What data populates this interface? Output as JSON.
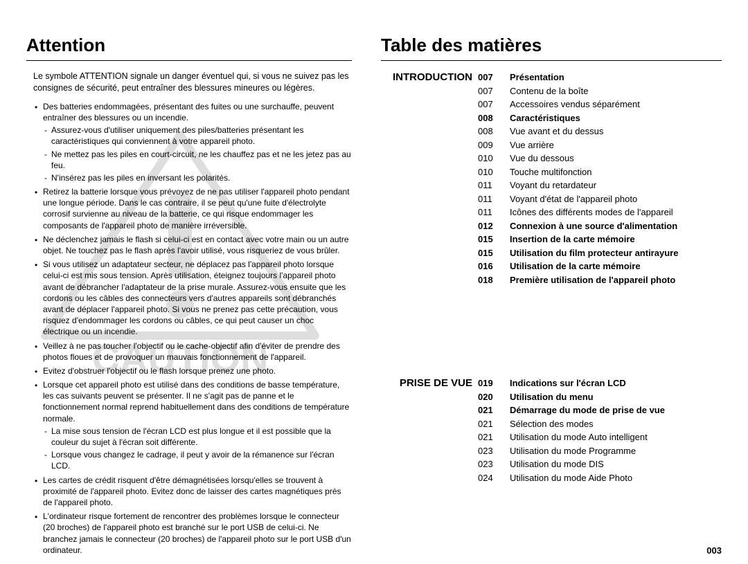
{
  "watermark": {
    "text": "CAUTION",
    "color": "#d9d9d9",
    "triangle_stroke": "#d9d9d9"
  },
  "left": {
    "heading": "Attention",
    "intro": "Le symbole ATTENTION signale un danger éventuel qui, si vous ne suivez pas les consignes de sécurité, peut entraîner des blessures mineures ou légères.",
    "bullets": [
      {
        "text": "Des batteries endommagées, présentant des fuites ou une surchauffe, peuvent entraîner des blessures ou un incendie.",
        "subs": [
          "Assurez-vous d'utiliser uniquement des piles/batteries présentant les caractéristiques qui conviennent à votre appareil photo.",
          "Ne mettez pas les piles en court-circuit, ne les chauffez pas et ne les jetez pas au feu.",
          "N'insérez pas les piles en inversant les polarités."
        ]
      },
      {
        "text": "Retirez la batterie lorsque vous prévoyez de ne pas utiliser l'appareil photo pendant une longue période. Dans le cas contraire, il se peut qu'une fuite d'électrolyte corrosif survienne au niveau de la batterie, ce qui risque endommager les composants de l'appareil photo de manière irréversible.",
        "subs": []
      },
      {
        "text": "Ne déclenchez jamais le flash si celui-ci est en contact avec votre main ou un autre objet. Ne touchez pas le flash après l'avoir utilisé, vous risqueriez de vous brûler.",
        "subs": []
      },
      {
        "text": "Si vous utilisez un adaptateur secteur, ne déplacez pas l'appareil photo lorsque celui-ci est mis sous tension. Après utilisation, éteignez toujours l'appareil photo avant de débrancher l'adaptateur de la prise murale. Assurez-vous ensuite que les cordons ou les câbles des connecteurs vers d'autres appareils sont débranchés avant de déplacer l'appareil photo. Si vous ne prenez pas cette précaution, vous risquez d'endommager les cordons ou câbles, ce qui peut causer un choc électrique ou un incendie.",
        "subs": []
      },
      {
        "text": "Veillez à ne pas toucher l'objectif ou le cache-objectif afin d'éviter de prendre des photos floues et de provoquer un mauvais fonctionnement de l'appareil.",
        "subs": []
      },
      {
        "text": "Evitez d'obstruer l'objectif ou le flash lorsque prenez une photo.",
        "subs": []
      },
      {
        "text": "Lorsque cet appareil photo est utilisé dans des conditions de basse température, les cas suivants peuvent se présenter. Il ne s'agit pas de panne et le fonctionnement normal reprend habituellement dans des conditions de température normale.",
        "subs": [
          "La mise sous tension de l'écran LCD est plus longue et il est possible que la couleur du sujet à l'écran soit différente.",
          "Lorsque vous changez le cadrage, il peut y avoir de la rémanence sur l'écran LCD."
        ]
      },
      {
        "text": "Les cartes de crédit risquent d'être démagnétisées lorsqu'elles se trouvent à proximité de l'appareil photo. Evitez donc de laisser des cartes magnétiques près de l'appareil photo.",
        "subs": []
      },
      {
        "text": "L'ordinateur risque fortement de rencontrer des problèmes lorsque le connecteur (20 broches) de l'appareil photo est branché sur le port USB de celui-ci. Ne branchez jamais le connecteur (20 broches) de l'appareil photo sur le port USB d'un ordinateur.",
        "subs": []
      }
    ]
  },
  "right": {
    "heading": "Table des matières",
    "sections": [
      {
        "label": "INTRODUCTION",
        "items": [
          {
            "page": "007",
            "title": "Présentation",
            "bold": true
          },
          {
            "page": "007",
            "title": "Contenu de la boîte",
            "bold": false
          },
          {
            "page": "007",
            "title": "Accessoires vendus séparément",
            "bold": false
          },
          {
            "page": "008",
            "title": "Caractéristiques",
            "bold": true
          },
          {
            "page": "008",
            "title": "Vue avant et du dessus",
            "bold": false
          },
          {
            "page": "009",
            "title": "Vue arrière",
            "bold": false
          },
          {
            "page": "010",
            "title": "Vue du dessous",
            "bold": false
          },
          {
            "page": "010",
            "title": "Touche multifonction",
            "bold": false
          },
          {
            "page": "011",
            "title": "Voyant du retardateur",
            "bold": false
          },
          {
            "page": "011",
            "title": "Voyant d'état de l'appareil photo",
            "bold": false
          },
          {
            "page": "011",
            "title": "Icônes des différents modes de l'appareil",
            "bold": false
          },
          {
            "page": "012",
            "title": "Connexion à une source d'alimentation",
            "bold": true
          },
          {
            "page": "015",
            "title": "Insertion de la carte mémoire",
            "bold": true
          },
          {
            "page": "015",
            "title": "Utilisation du film protecteur antirayure",
            "bold": true
          },
          {
            "page": "016",
            "title": "Utilisation de la carte mémoire",
            "bold": true
          },
          {
            "page": "018",
            "title": "Première utilisation de l'appareil photo",
            "bold": true
          }
        ]
      },
      {
        "label": "PRISE DE VUE",
        "items": [
          {
            "page": "019",
            "title": "Indications sur l'écran LCD",
            "bold": true
          },
          {
            "page": "020",
            "title": "Utilisation du menu",
            "bold": true
          },
          {
            "page": "021",
            "title": "Démarrage du mode de prise de vue",
            "bold": true
          },
          {
            "page": "021",
            "title": "Sélection des modes",
            "bold": false
          },
          {
            "page": "021",
            "title": "Utilisation du mode Auto intelligent",
            "bold": false
          },
          {
            "page": "023",
            "title": "Utilisation du mode Programme",
            "bold": false
          },
          {
            "page": "023",
            "title": "Utilisation du mode DIS",
            "bold": false
          },
          {
            "page": "024",
            "title": "Utilisation du mode Aide Photo",
            "bold": false
          }
        ]
      }
    ]
  },
  "page_number": "003",
  "colors": {
    "text": "#000000",
    "background": "#ffffff",
    "rule": "#000000",
    "watermark": "#d9d9d9"
  },
  "typography": {
    "heading_fontsize": 26,
    "body_fontsize": 12,
    "toc_fontsize": 13,
    "section_label_fontsize": 15,
    "font_family": "Arial"
  }
}
